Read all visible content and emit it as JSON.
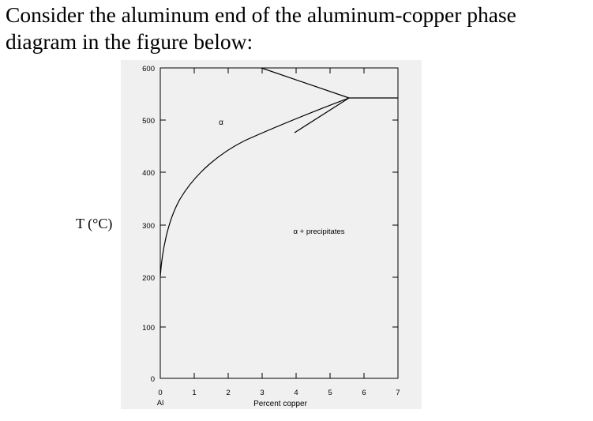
{
  "question": {
    "line1": "Consider the aluminum end of the aluminum-copper phase",
    "line2": "diagram in the figure below:"
  },
  "diagram": {
    "y_axis_label": "T (°C)",
    "x_axis_label": "Percent copper",
    "x_origin_label": "Al",
    "y_ticks": [
      "600",
      "500",
      "400",
      "300",
      "200",
      "100",
      "0"
    ],
    "x_ticks": [
      "0",
      "1",
      "2",
      "3",
      "4",
      "5",
      "6",
      "7"
    ],
    "region_alpha": "α",
    "region_two_phase": "α + precipitates",
    "background_color": "#f0f0f0",
    "line_color": "#000000"
  }
}
